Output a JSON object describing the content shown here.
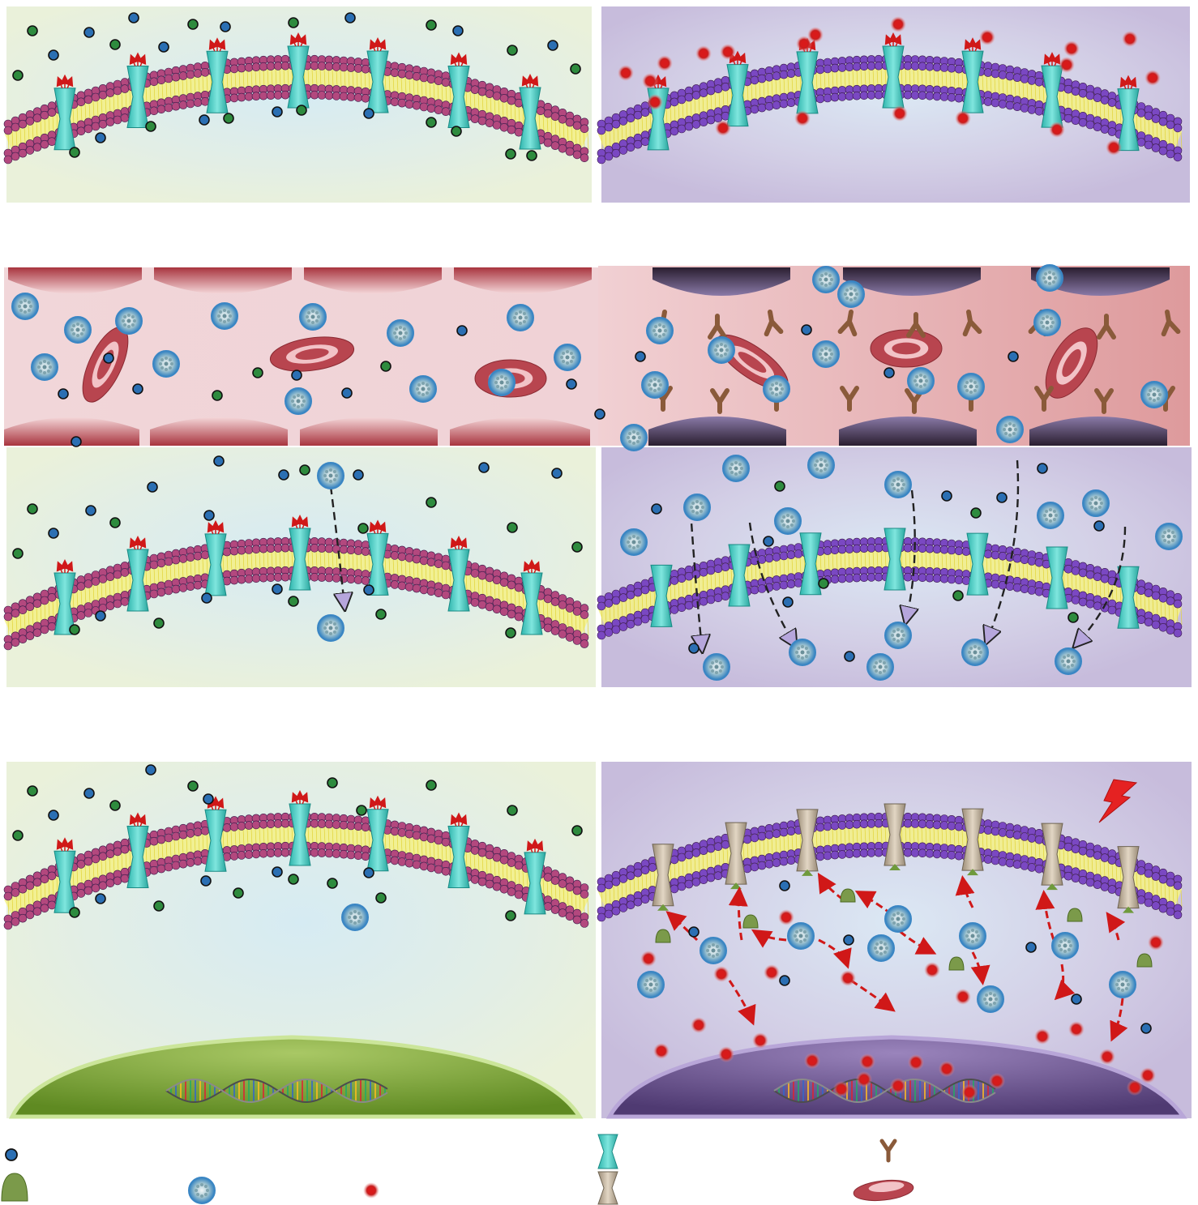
{
  "figure": {
    "panels": [
      {
        "id": "row1-left",
        "theme": "healthy-green",
        "content": "ion-channels-membrane"
      },
      {
        "id": "row1-right",
        "theme": "diseased-purple",
        "content": "ion-channels-membrane"
      },
      {
        "id": "row2-left",
        "theme": "blood-vessel-healthy",
        "content": "red-blood-cells"
      },
      {
        "id": "row2-right",
        "theme": "blood-vessel-diseased",
        "content": "red-blood-cells-with-receptors"
      },
      {
        "id": "row3-left",
        "theme": "healthy-green",
        "content": "nanoparticle-uptake"
      },
      {
        "id": "row3-right",
        "theme": "diseased-purple",
        "content": "nanoparticle-uptake"
      },
      {
        "id": "row4-left",
        "theme": "healthy-green",
        "content": "cell-with-nucleus-dna"
      },
      {
        "id": "row4-right",
        "theme": "diseased-purple",
        "content": "cell-with-nucleus-dna-ros"
      }
    ],
    "colors": {
      "healthy_bg": "#eaf1da",
      "healthy_inner": "#d8ebf2",
      "diseased_bg": "#c9bedd",
      "diseased_inner": "#d8e6f2",
      "membrane_pink": "#b3487e",
      "membrane_purple": "#7a48c2",
      "membrane_core": "#f3f08a",
      "channel_teal": "#3fc7bf",
      "channel_beige": "#bfae98",
      "dot_blue": "#2b6fb3",
      "dot_green": "#2e8b3e",
      "dot_red": "#c81e1e",
      "nanoparticle": "#8fc7e8",
      "vessel_bg": "#efcfd3",
      "rbc": "#b8454f",
      "receptor_brown": "#8a5a3a",
      "nucleus_green": "#7aa23a",
      "nucleus_purple": "#6d4f92",
      "arrow_red": "#d01818",
      "arrow_lavender": "#b6a6dc"
    },
    "legend": {
      "items": [
        {
          "icon": "blue-ion-dot-icon"
        },
        {
          "icon": "teal-channel-icon"
        },
        {
          "icon": "y-receptor-icon"
        },
        {
          "icon": "green-protein-icon"
        },
        {
          "icon": "nanoparticle-icon"
        },
        {
          "icon": "red-ros-dot-icon"
        },
        {
          "icon": "beige-channel-icon"
        },
        {
          "icon": "red-blood-cell-icon"
        }
      ]
    }
  }
}
